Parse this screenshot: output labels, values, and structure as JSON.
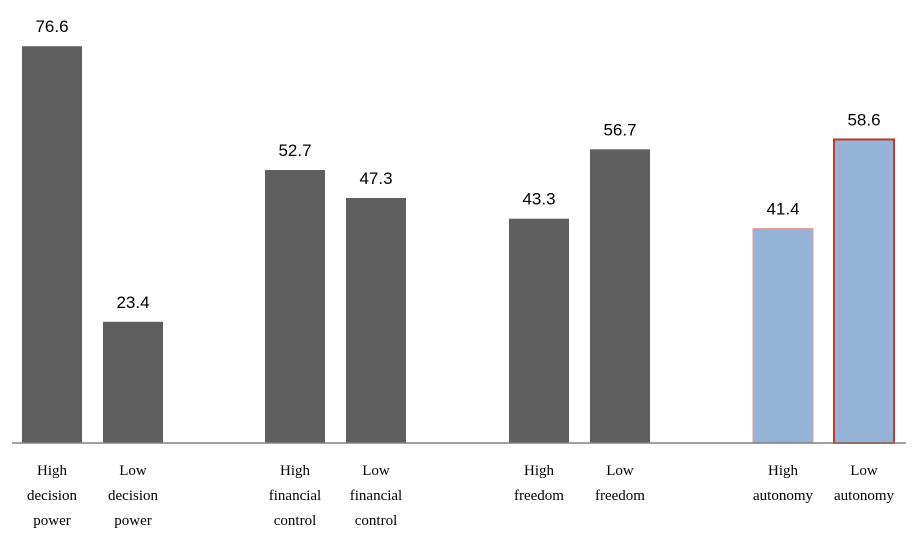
{
  "chart_data": {
    "type": "bar",
    "title": "",
    "xlabel": "",
    "ylabel": "",
    "ylim": [
      0,
      80
    ],
    "grid": false,
    "legend": "none",
    "categories": [
      [
        "High",
        "decision",
        "power"
      ],
      [
        "Low",
        "decision",
        "power"
      ],
      [
        "High",
        "financial",
        "control"
      ],
      [
        "Low",
        "financial",
        "control"
      ],
      [
        "High",
        "freedom"
      ],
      [
        "Low",
        "freedom"
      ],
      [
        "High",
        "autonomy"
      ],
      [
        "Low",
        "autonomy"
      ]
    ],
    "values": [
      76.6,
      23.4,
      52.7,
      47.3,
      43.3,
      56.7,
      41.4,
      58.6
    ],
    "value_labels": [
      "76.6",
      "23.4",
      "52.7",
      "47.3",
      "43.3",
      "56.7",
      "41.4",
      "58.6"
    ],
    "groups": [
      [
        0,
        1
      ],
      [
        2,
        3
      ],
      [
        4,
        5
      ],
      [
        6,
        7
      ]
    ],
    "colors": {
      "default_fill": "#5f5f5f",
      "highlight_fill": "#95b3d7",
      "highlight_stroke_light": "#e59a9a",
      "highlight_stroke_strong": "#c0392b",
      "axis": "#808080"
    },
    "highlighted_bars": [
      6,
      7
    ]
  }
}
